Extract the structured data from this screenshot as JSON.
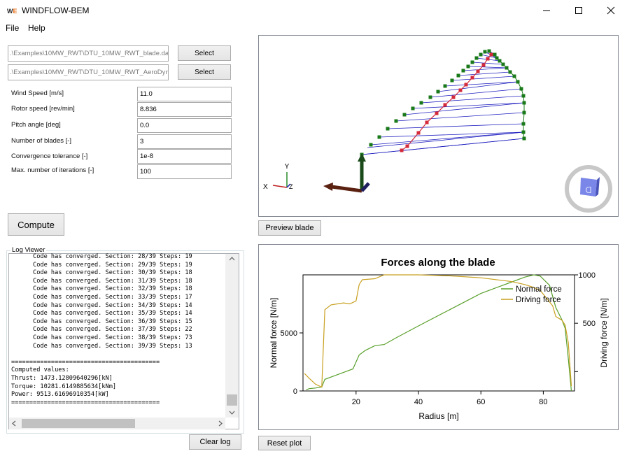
{
  "window": {
    "title": "WINDFLOW-BEM",
    "icon_w": "W",
    "icon_e": "E"
  },
  "menu": {
    "file": "File",
    "help": "Help"
  },
  "files": {
    "blade_path": ".\\Examples\\10MW_RWT\\DTU_10MW_RWT_blade.dat",
    "aero_path": ".\\Examples\\10MW_RWT\\DTU_10MW_RWT_AeroDynamics.dat",
    "select_label": "Select"
  },
  "params": [
    {
      "label": "Wind Speed [m/s]",
      "value": "11.0"
    },
    {
      "label": "Rotor speed [rev/min]",
      "value": "8.836"
    },
    {
      "label": "Pitch angle [deg]",
      "value": "0.0"
    },
    {
      "label": "Number of blades [-]",
      "value": "3"
    },
    {
      "label": "Convergence tolerance [-]",
      "value": "1e-8"
    },
    {
      "label": "Max. number of iterations [-]",
      "value": "100"
    }
  ],
  "compute_label": "Compute",
  "log": {
    "title": "Log Viewer",
    "lines": [
      "      Code has converged. Section: 28/39 Steps: 19",
      "      Code has converged. Section: 29/39 Steps: 19",
      "      Code has converged. Section: 30/39 Steps: 18",
      "      Code has converged. Section: 31/39 Steps: 18",
      "      Code has converged. Section: 32/39 Steps: 18",
      "      Code has converged. Section: 33/39 Steps: 17",
      "      Code has converged. Section: 34/39 Steps: 14",
      "      Code has converged. Section: 35/39 Steps: 14",
      "      Code has converged. Section: 36/39 Steps: 15",
      "      Code has converged. Section: 37/39 Steps: 22",
      "      Code has converged. Section: 38/39 Steps: 73",
      "      Code has converged. Section: 39/39 Steps: 13",
      "",
      "=========================================",
      "Computed values:",
      "Thrust: 1473.12809640296[kN]",
      "Torque: 10281.6149885634[kNm]",
      "Power: 9513.61696910354[kW]",
      "========================================="
    ],
    "clear_label": "Clear log"
  },
  "viewer": {
    "preview_label": "Preview blade",
    "axis_x": "X",
    "axis_y": "Y",
    "axis_z": "Z",
    "cube_label": "D",
    "colors": {
      "te": "#1a7a1a",
      "le": "#d42a3a",
      "chord": "#2020c0"
    }
  },
  "plot": {
    "reset_label": "Reset plot"
  },
  "chart_data": {
    "type": "line",
    "title": "Forces along the blade",
    "xlabel": "Radius [m]",
    "ylabel": "Normal force [N/m]",
    "y2label": "Driving force",
    "y2label_unit": "[N/m]",
    "xlim": [
      3,
      90
    ],
    "ylim": [
      0,
      10000
    ],
    "y2lim": [
      -200,
      1000
    ],
    "xticks": [
      "20",
      "40",
      "60",
      "80"
    ],
    "xtick_values": [
      20,
      40,
      60,
      80
    ],
    "yticks": [
      "0",
      "5000"
    ],
    "ytick_values": [
      0,
      5000
    ],
    "y2ticks": [
      "500",
      "1000"
    ],
    "y2tick_values": [
      500,
      1000
    ],
    "legend_position": "top-right",
    "series": [
      {
        "name": "Normal force",
        "axis": "left",
        "color": "#5aa02c",
        "x": [
          4,
          5,
          7,
          9,
          10,
          13,
          16,
          19,
          21,
          23,
          26,
          29,
          33,
          40,
          50,
          60,
          66,
          70,
          74,
          77,
          79,
          82,
          84,
          86,
          87,
          88,
          89
        ],
        "values": [
          100,
          200,
          250,
          350,
          1000,
          1300,
          1600,
          1900,
          3100,
          3500,
          3900,
          4000,
          4600,
          5600,
          7000,
          8400,
          9000,
          9400,
          9800,
          10000,
          9900,
          9100,
          7200,
          6100,
          5400,
          2800,
          0
        ]
      },
      {
        "name": "Driving force",
        "axis": "right",
        "color": "#c8a020",
        "x": [
          3.5,
          5,
          7,
          9,
          10,
          12,
          14,
          16,
          18,
          20,
          21,
          22,
          26,
          29,
          33,
          40,
          50,
          60,
          70,
          74,
          77,
          79,
          81,
          83,
          84,
          86,
          87,
          88,
          89
        ],
        "values": [
          -20,
          -70,
          -130,
          -160,
          640,
          690,
          700,
          710,
          700,
          730,
          900,
          950,
          960,
          1000,
          1000,
          1000,
          990,
          970,
          930,
          900,
          870,
          840,
          760,
          680,
          570,
          530,
          480,
          300,
          -150
        ]
      }
    ]
  }
}
